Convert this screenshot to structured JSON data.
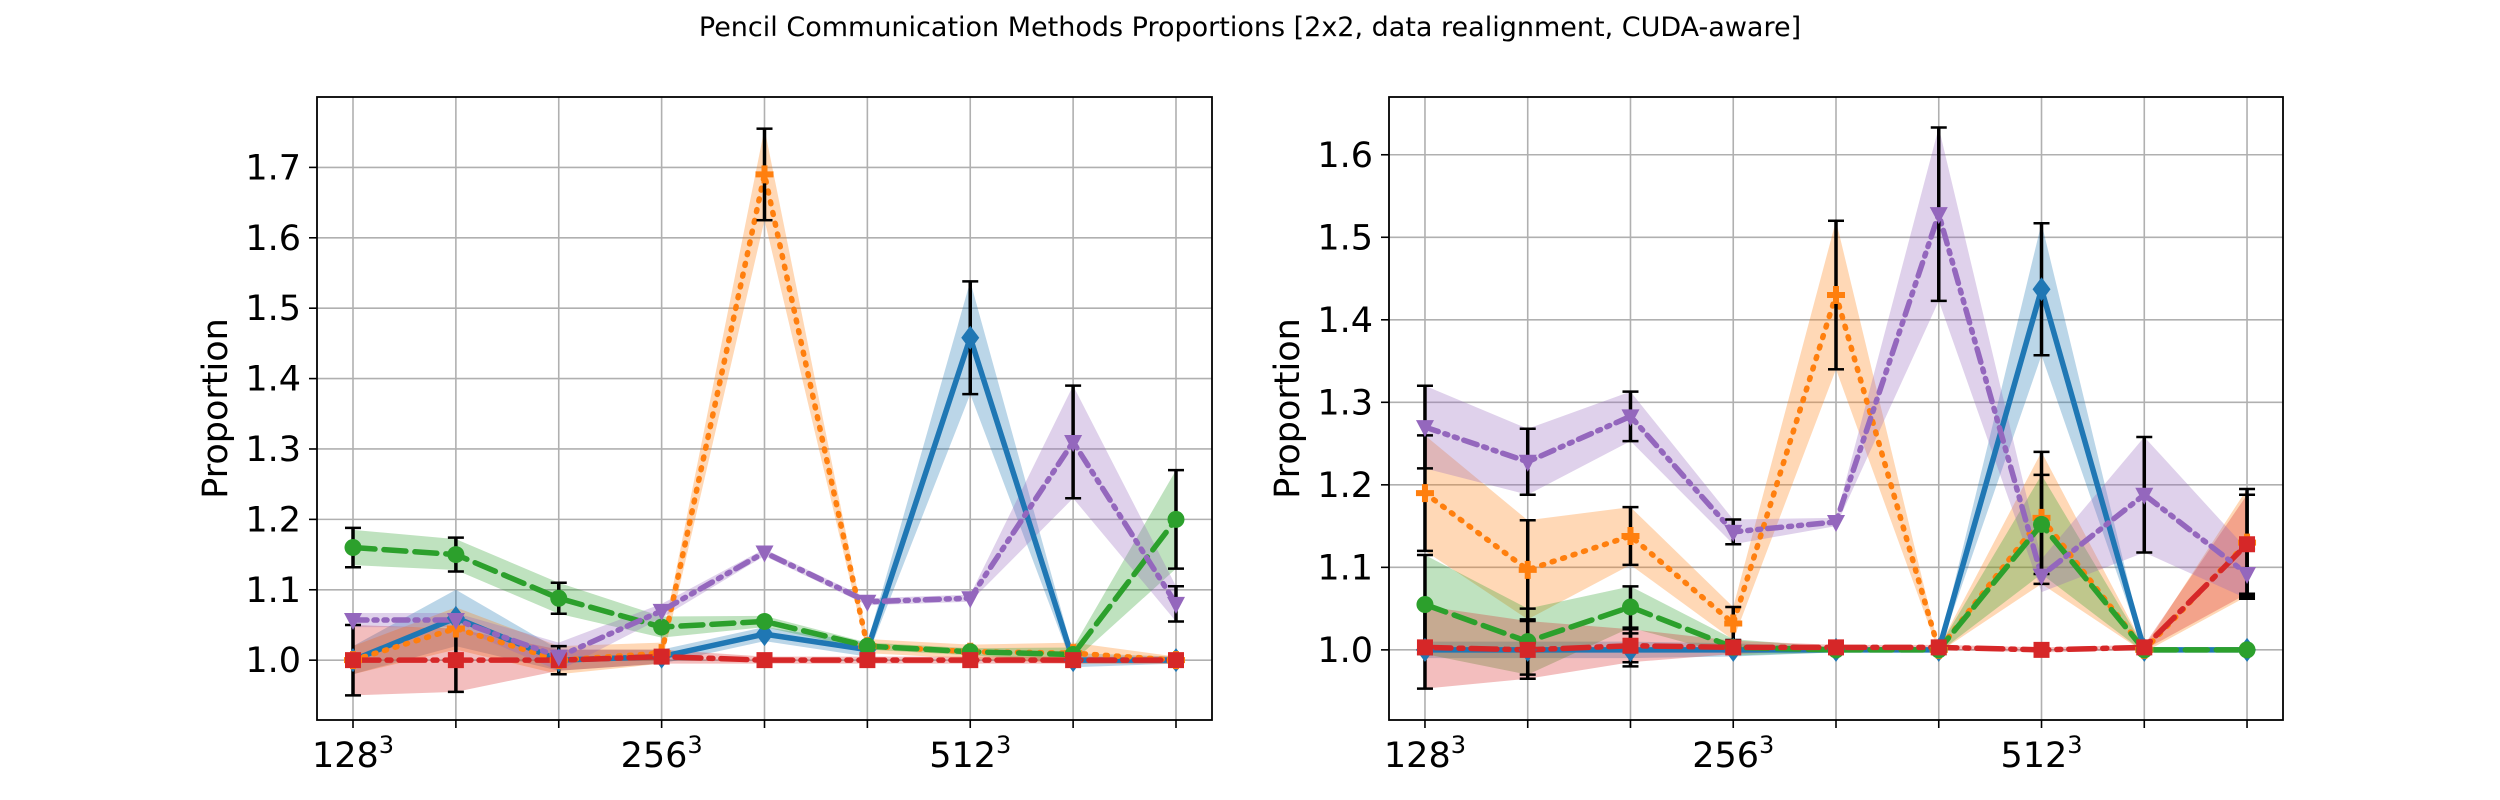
{
  "figure": {
    "title": "Pencil Communication Methods Proportions [2x2, data realignment, CUDA-aware]"
  },
  "chart_data": [
    {
      "type": "line",
      "title": "",
      "xlabel": "",
      "ylabel": "Proportion",
      "x": [
        0,
        1,
        2,
        3,
        4,
        5,
        6,
        7,
        8
      ],
      "xticks": [
        {
          "x": 0,
          "base": "128",
          "exp": "3"
        },
        {
          "x": 3,
          "base": "256",
          "exp": "3"
        },
        {
          "x": 6,
          "base": "512",
          "exp": "3"
        }
      ],
      "xlim": [
        -0.35,
        8.35
      ],
      "ylim": [
        0.915,
        1.8
      ],
      "yticks": [
        1.0,
        1.1,
        1.2,
        1.3,
        1.4,
        1.5,
        1.6,
        1.7
      ],
      "ytick_labels": [
        "1.0",
        "1.1",
        "1.2",
        "1.3",
        "1.4",
        "1.5",
        "1.6",
        "1.7"
      ],
      "grid": true,
      "series": [
        {
          "color": "#1f77b4",
          "linestyle": "solid",
          "marker": "diamond",
          "values": [
            1.0,
            1.06,
            1.0,
            1.005,
            1.037,
            1.015,
            1.458,
            1.0,
            1.0
          ],
          "band": [
            0.02,
            0.04,
            0.015,
            0.01,
            0.01,
            0.01,
            0.08,
            0.01,
            0.005
          ],
          "errors": [
            0,
            0,
            0,
            0,
            0,
            0,
            0.08,
            0,
            0
          ]
        },
        {
          "color": "#ff7f0e",
          "linestyle": "dotted",
          "marker": "plus",
          "values": [
            1.0,
            1.045,
            1.0,
            1.01,
            1.69,
            1.02,
            1.012,
            1.01,
            1.0
          ],
          "band": [
            0.02,
            0.03,
            0.02,
            0.015,
            0.065,
            0.01,
            0.01,
            0.015,
            0.005
          ],
          "errors": [
            0,
            0,
            0,
            0,
            0.065,
            0,
            0,
            0,
            0
          ]
        },
        {
          "color": "#2ca02c",
          "linestyle": "dashed",
          "marker": "circle",
          "values": [
            1.16,
            1.15,
            1.088,
            1.047,
            1.055,
            1.02,
            1.012,
            1.008,
            1.2
          ],
          "band": [
            0.025,
            0.022,
            0.022,
            0.015,
            0.008,
            0.005,
            0.005,
            0.01,
            0.07
          ],
          "errors": [
            0.028,
            0.024,
            0.022,
            0,
            0,
            0,
            0,
            0,
            0.07
          ]
        },
        {
          "color": "#d62728",
          "linestyle": "dashdot",
          "marker": "square",
          "values": [
            1.0,
            1.0,
            1.0,
            1.005,
            1.0,
            1.0,
            1.0,
            1.0,
            1.0
          ],
          "band": [
            0.05,
            0.045,
            0.015,
            0.01,
            0.005,
            0.005,
            0.005,
            0.005,
            0.005
          ],
          "errors": [
            0.05,
            0.045,
            0.02,
            0,
            0,
            0,
            0,
            0,
            0
          ]
        },
        {
          "color": "#9467bd",
          "linestyle": "dashdotdot",
          "marker": "triangle-down",
          "values": [
            1.057,
            1.057,
            1.005,
            1.07,
            1.153,
            1.083,
            1.088,
            1.31,
            1.08
          ],
          "band": [
            0.01,
            0.01,
            0.02,
            0.01,
            0.005,
            0.005,
            0.005,
            0.08,
            0.025
          ],
          "errors": [
            0,
            0,
            0,
            0,
            0,
            0,
            0,
            0.08,
            0.025
          ]
        }
      ]
    },
    {
      "type": "line",
      "title": "",
      "xlabel": "",
      "ylabel": "Proportion",
      "x": [
        0,
        1,
        2,
        3,
        4,
        5,
        6,
        7,
        8
      ],
      "xticks": [
        {
          "x": 0,
          "base": "128",
          "exp": "3"
        },
        {
          "x": 3,
          "base": "256",
          "exp": "3"
        },
        {
          "x": 6,
          "base": "512",
          "exp": "3"
        }
      ],
      "xlim": [
        -0.35,
        8.35
      ],
      "ylim": [
        0.915,
        1.67
      ],
      "yticks": [
        1.0,
        1.1,
        1.2,
        1.3,
        1.4,
        1.5,
        1.6
      ],
      "ytick_labels": [
        "1.0",
        "1.1",
        "1.2",
        "1.3",
        "1.4",
        "1.5",
        "1.6"
      ],
      "grid": true,
      "series": [
        {
          "color": "#1f77b4",
          "linestyle": "solid",
          "marker": "diamond",
          "values": [
            1.0,
            1.0,
            1.0,
            1.0,
            1.0,
            1.0,
            1.437,
            1.0,
            1.0
          ],
          "band": [
            0.01,
            0.01,
            0.01,
            0.008,
            0.003,
            0.003,
            0.08,
            0.003,
            0.003
          ],
          "errors": [
            0,
            0,
            0.02,
            0,
            0,
            0,
            0.08,
            0,
            0
          ]
        },
        {
          "color": "#ff7f0e",
          "linestyle": "dotted",
          "marker": "plus",
          "values": [
            1.19,
            1.097,
            1.138,
            1.032,
            1.43,
            1.0,
            1.16,
            1.0,
            1.13
          ],
          "band": [
            0.07,
            0.06,
            0.035,
            0.02,
            0.09,
            0.003,
            0.08,
            0.003,
            0.065
          ],
          "errors": [
            0.07,
            0.06,
            0.035,
            0.02,
            0.09,
            0,
            0.08,
            0,
            0.065
          ]
        },
        {
          "color": "#2ca02c",
          "linestyle": "dashed",
          "marker": "circle",
          "values": [
            1.055,
            1.01,
            1.052,
            1.003,
            1.0,
            1.0,
            1.152,
            1.0,
            1.0
          ],
          "band": [
            0.06,
            0.04,
            0.025,
            0.01,
            0.003,
            0.003,
            0.06,
            0.003,
            0.003
          ],
          "errors": [
            0.06,
            0.04,
            0.025,
            0,
            0,
            0,
            0.06,
            0,
            0
          ]
        },
        {
          "color": "#d62728",
          "linestyle": "dashdot",
          "marker": "square",
          "values": [
            1.003,
            1.0,
            1.005,
            1.003,
            1.003,
            1.003,
            1.0,
            1.003,
            1.128
          ],
          "band": [
            0.05,
            0.035,
            0.02,
            0.008,
            0.003,
            0.003,
            0.003,
            0.003,
            0.06
          ],
          "errors": [
            0.05,
            0.035,
            0.02,
            0,
            0,
            0,
            0,
            0,
            0.06
          ]
        },
        {
          "color": "#9467bd",
          "linestyle": "dashdotdot",
          "marker": "triangle-down",
          "values": [
            1.27,
            1.228,
            1.283,
            1.143,
            1.155,
            1.528,
            1.09,
            1.188,
            1.092
          ],
          "band": [
            0.05,
            0.04,
            0.03,
            0.015,
            0.005,
            0.105,
            0.02,
            0.07,
            0.03
          ],
          "errors": [
            0.05,
            0.04,
            0.03,
            0.015,
            0,
            0.105,
            0,
            0.07,
            0.03
          ]
        }
      ]
    }
  ]
}
